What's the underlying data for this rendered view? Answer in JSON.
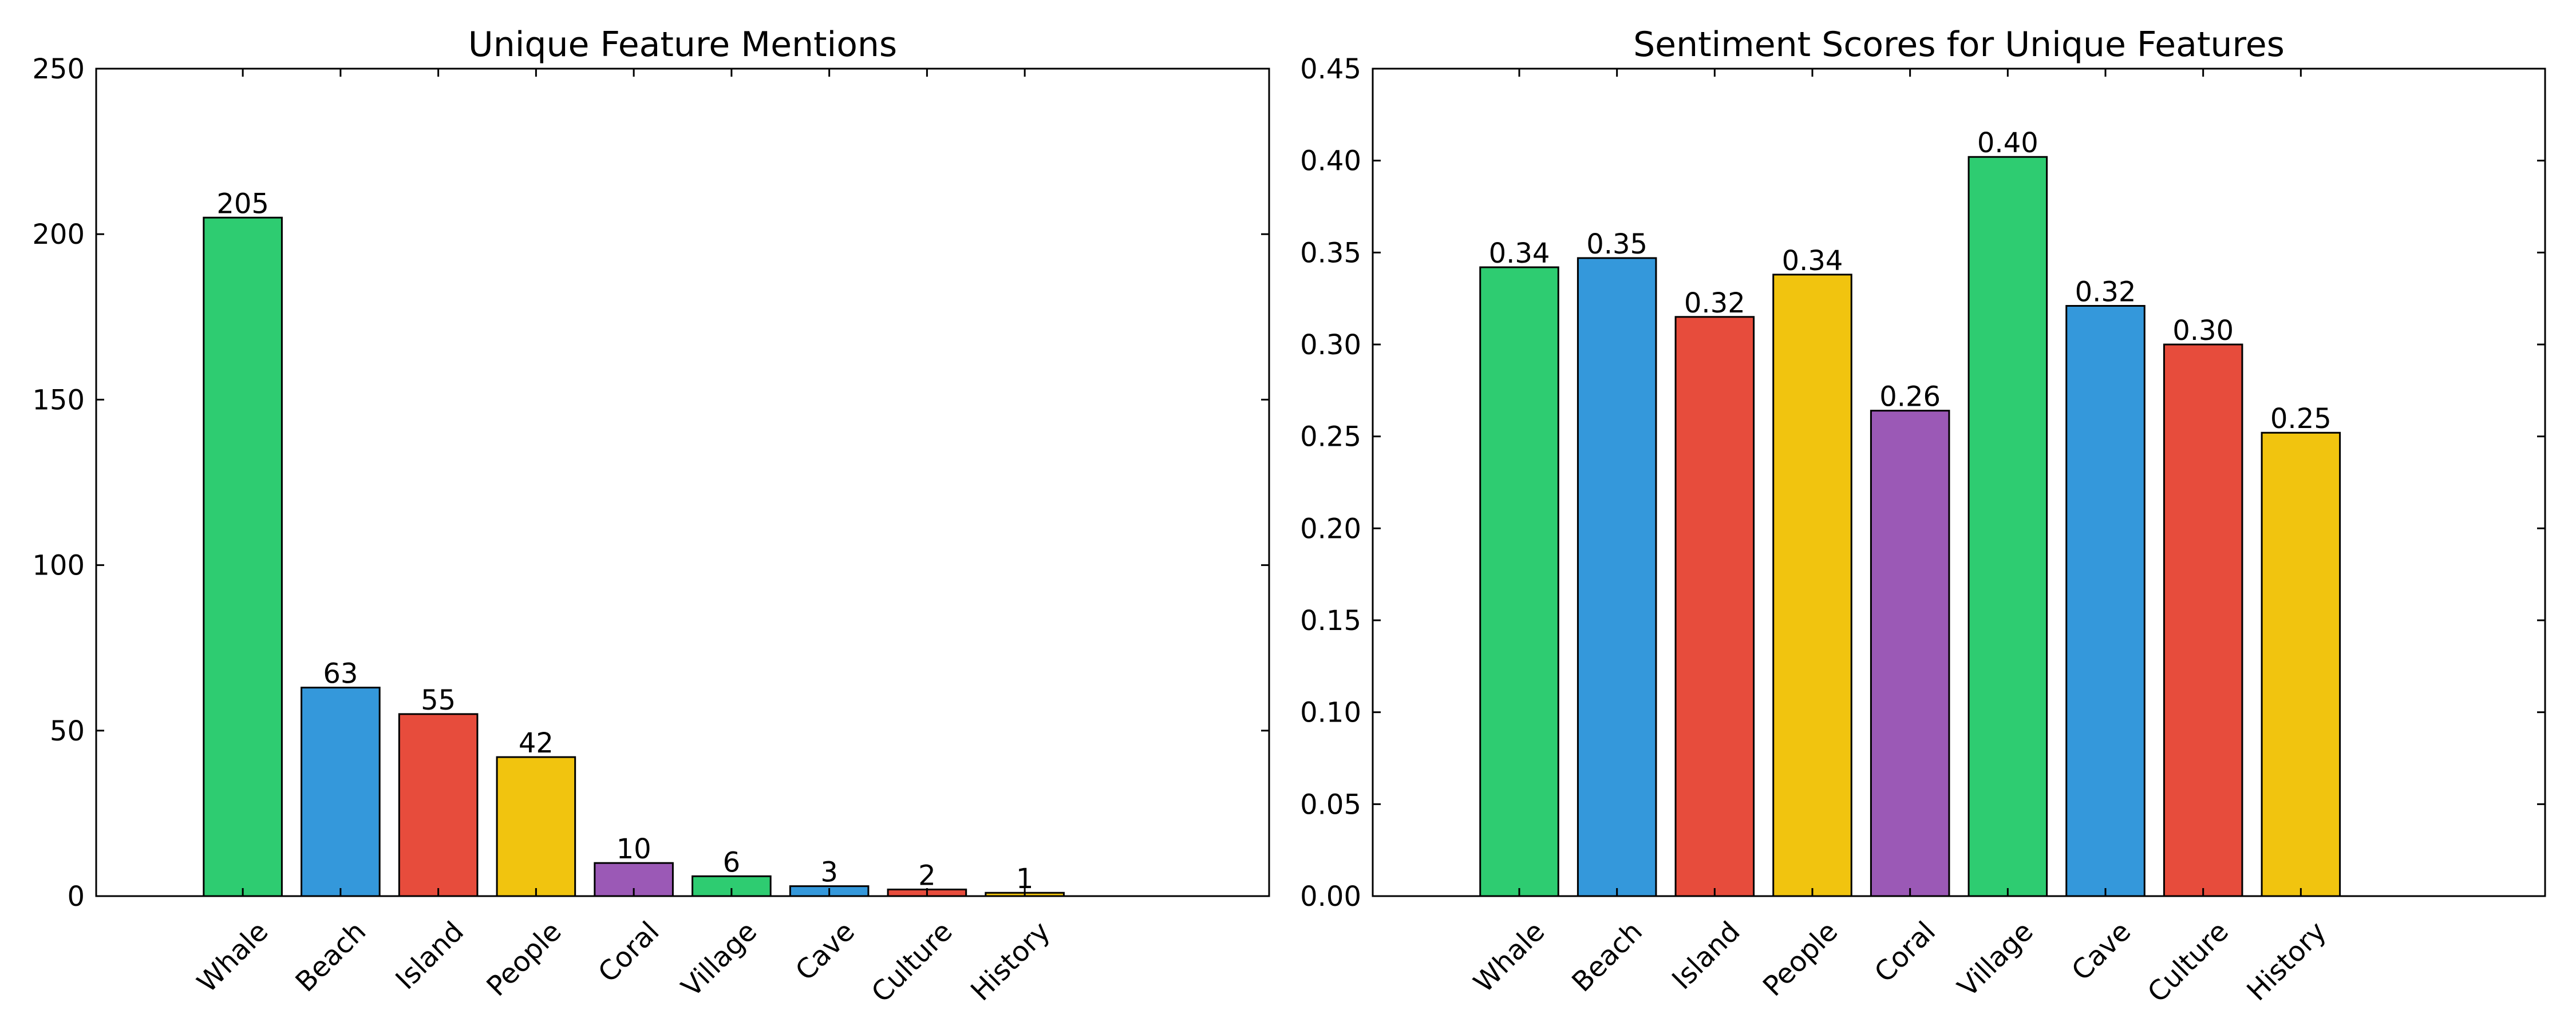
{
  "chart_data": [
    {
      "type": "bar",
      "title": "Unique Feature Mentions",
      "xlabel": "",
      "ylabel": "",
      "categories": [
        "Whale",
        "Beach",
        "Island",
        "People",
        "Coral",
        "Village",
        "Cave",
        "Culture",
        "History"
      ],
      "values": [
        205,
        63,
        55,
        42,
        10,
        6,
        3,
        2,
        1
      ],
      "value_labels": [
        "205",
        "63",
        "55",
        "42",
        "10",
        "6",
        "3",
        "2",
        "1"
      ],
      "colors": [
        "#2ecc71",
        "#3498db",
        "#e74c3c",
        "#f1c40f",
        "#9b59b6",
        "#2ecc71",
        "#3498db",
        "#e74c3c",
        "#f1c40f"
      ],
      "ylim": [
        0,
        250
      ],
      "yticks": [
        0,
        50,
        100,
        150,
        200,
        250
      ],
      "ytick_labels": [
        "0",
        "50",
        "100",
        "150",
        "200",
        "250"
      ],
      "xlim": [
        -1.5,
        10.5
      ],
      "grid": false,
      "legend": "none"
    },
    {
      "type": "bar",
      "title": "Sentiment Scores for Unique Features",
      "xlabel": "",
      "ylabel": "",
      "categories": [
        "Whale",
        "Beach",
        "Island",
        "People",
        "Coral",
        "Village",
        "Cave",
        "Culture",
        "History"
      ],
      "values": [
        0.342,
        0.347,
        0.315,
        0.338,
        0.264,
        0.402,
        0.321,
        0.3,
        0.252
      ],
      "value_labels": [
        "0.34",
        "0.35",
        "0.32",
        "0.34",
        "0.26",
        "0.40",
        "0.32",
        "0.30",
        "0.25"
      ],
      "colors": [
        "#2ecc71",
        "#3498db",
        "#e74c3c",
        "#f1c40f",
        "#9b59b6",
        "#2ecc71",
        "#3498db",
        "#e74c3c",
        "#f1c40f"
      ],
      "ylim": [
        0,
        0.45
      ],
      "yticks": [
        0,
        0.05,
        0.1,
        0.15,
        0.2,
        0.25,
        0.3,
        0.35,
        0.4,
        0.45
      ],
      "ytick_labels": [
        "0.00",
        "0.05",
        "0.10",
        "0.15",
        "0.20",
        "0.25",
        "0.30",
        "0.35",
        "0.40",
        "0.45"
      ],
      "xlim": [
        -1.5,
        10.5
      ],
      "grid": false,
      "legend": "none"
    }
  ]
}
